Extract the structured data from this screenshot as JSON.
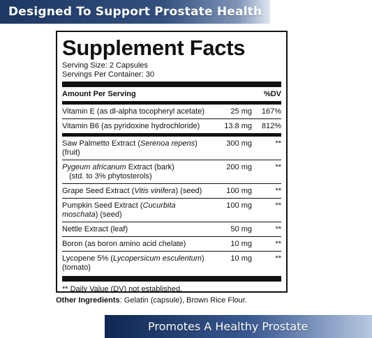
{
  "banner_top": "Designed To Support Prostate Health",
  "banner_bottom": "Promotes A Healthy Prostate",
  "facts": {
    "title": "Supplement Facts",
    "serving_size": "Serving Size: 2 Capsules",
    "servings_per_container": "Servings Per Container: 30",
    "header_amount": "Amount Per Serving",
    "header_dv": "%DV",
    "rows": [
      {
        "pre": "Vitamin E (as dl-alpha tocopheryl acetate)",
        "ital": "",
        "post": "",
        "sub": "",
        "amount": "25 mg",
        "dv": "167%"
      },
      {
        "pre": "Vitamin B6 (as pyridoxine hydrochloride)",
        "ital": "",
        "post": "",
        "sub": "",
        "amount": "13.8 mg",
        "dv": "812%"
      },
      {
        "pre": "Saw Palmetto Extract (",
        "ital": "Serenoa repens",
        "post": ") (fruit)",
        "sub": "",
        "amount": "300 mg",
        "dv": "**"
      },
      {
        "pre": "",
        "ital": "Pygeum africanum",
        "post": " Extract (bark)",
        "sub": "(std. to 3% phytosterols)",
        "amount": "200 mg",
        "dv": "**"
      },
      {
        "pre": "Grape Seed Extract (",
        "ital": "Vitis vinifera",
        "post": ") (seed)",
        "sub": "",
        "amount": "100 mg",
        "dv": "**"
      },
      {
        "pre": "Pumpkin Seed Extract (",
        "ital": "Cucurbita moschata",
        "post": ") (seed)",
        "sub": "",
        "amount": "100 mg",
        "dv": "**"
      },
      {
        "pre": "Nettle Extract (leaf)",
        "ital": "",
        "post": "",
        "sub": "",
        "amount": "50 mg",
        "dv": "**"
      },
      {
        "pre": "Boron (as boron amino acid chelate)",
        "ital": "",
        "post": "",
        "sub": "",
        "amount": "10 mg",
        "dv": "**"
      },
      {
        "pre": "Lycopene 5% (",
        "ital": "Lycopersicum esculentum",
        "post": ") (tomato)",
        "sub": "",
        "amount": "10 mg",
        "dv": "**"
      }
    ],
    "footnote": "** Daily Value (DV) not established."
  },
  "other": {
    "label": "Other Ingredients",
    "text": ": Gelatin (capsule), Brown Rice Flour."
  },
  "colors": {
    "banner_dark": "#1d3763",
    "banner_light": "#dfe6f0",
    "ink": "#111111"
  }
}
